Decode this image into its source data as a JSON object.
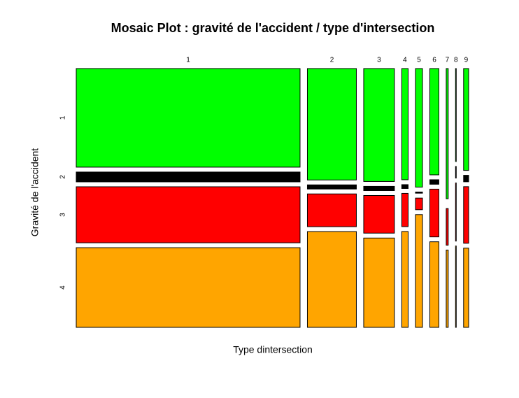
{
  "chart_data": {
    "type": "mosaic",
    "title": "Mosaic Plot : gravité de l'accident / type d'intersection",
    "x_label": "Type dintersection",
    "y_label": "Gravité de l'accident",
    "categories": [
      "1",
      "2",
      "3",
      "4",
      "5",
      "6",
      "7",
      "8",
      "9"
    ],
    "series": [
      {
        "name": "1",
        "color": "#00ff00",
        "values": [
          27.1,
          6.7,
          4.26,
          0.87,
          1.02,
          1.18,
          0.32,
          0.08,
          0.63
        ]
      },
      {
        "name": "2",
        "color": "#000000",
        "values": [
          2.7,
          0.25,
          0.16,
          0.03,
          0.01,
          0.05,
          0,
          0.01,
          0.04
        ]
      },
      {
        "name": "3",
        "color": "#ff0000",
        "values": [
          15.4,
          1.97,
          1.42,
          0.26,
          0.1,
          0.53,
          0.09,
          0.05,
          0.35
        ]
      },
      {
        "name": "4",
        "color": "#ffa500",
        "values": [
          21.9,
          5.76,
          3.37,
          0.75,
          0.97,
          0.95,
          0.19,
          0.07,
          0.49
        ]
      }
    ]
  }
}
